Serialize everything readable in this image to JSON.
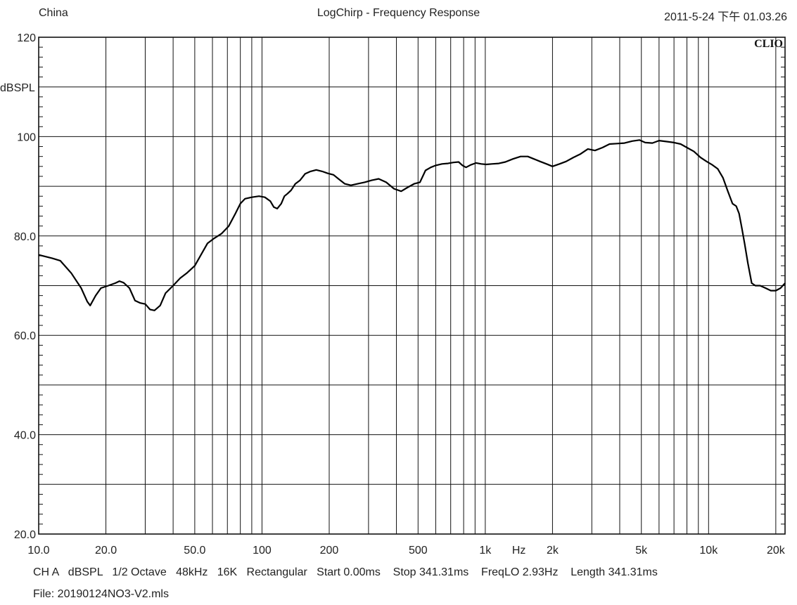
{
  "header": {
    "left": "China",
    "title": "LogChirp - Frequency Response",
    "datetime": "2011-5-24 下午 01.03.26"
  },
  "brand": "CLIO",
  "footer": {
    "params": "CH A   dBSPL   1/2 Octave   48kHz   16K   Rectangular   Start 0.00ms    Stop 341.31ms    FreqLO 2.93Hz    Length 341.31ms",
    "file": "File: 20190124NO3-V2.mls"
  },
  "chart_data": {
    "type": "line",
    "title": "LogChirp - Frequency Response",
    "xlabel": "Hz",
    "ylabel": "dBSPL",
    "xscale": "log",
    "xlim": [
      10,
      22000
    ],
    "ylim": [
      20,
      120
    ],
    "grid": true,
    "x_tick_labels": [
      {
        "value": 10,
        "label": "10.0"
      },
      {
        "value": 20,
        "label": "20.0"
      },
      {
        "value": 50,
        "label": "50.0"
      },
      {
        "value": 100,
        "label": "100"
      },
      {
        "value": 200,
        "label": "200"
      },
      {
        "value": 500,
        "label": "500"
      },
      {
        "value": 1000,
        "label": "1k"
      },
      {
        "value": 2000,
        "label": "2k"
      },
      {
        "value": 5000,
        "label": "5k"
      },
      {
        "value": 10000,
        "label": "10k"
      },
      {
        "value": 20000,
        "label": "20k"
      }
    ],
    "y_tick_labels": [
      {
        "value": 120,
        "label": "120"
      },
      {
        "value": 100,
        "label": "100"
      },
      {
        "value": 80,
        "label": "80.0"
      },
      {
        "value": 60,
        "label": "60.0"
      },
      {
        "value": 40,
        "label": "40.0"
      },
      {
        "value": 20,
        "label": "20.0"
      }
    ],
    "series": [
      {
        "x": [
          10,
          11.5,
          12.5,
          14,
          15.5,
          16.5,
          17,
          18,
          19,
          20.5,
          22,
          23,
          24,
          25.5,
          27,
          28.5,
          30,
          31.5,
          33,
          35,
          37,
          40,
          43,
          46,
          50,
          53,
          57,
          61,
          66,
          71,
          76,
          80,
          84,
          90,
          97,
          103,
          109,
          113,
          117,
          122,
          126,
          130,
          135,
          141,
          148,
          156,
          165,
          175,
          186,
          197,
          209,
          220,
          235,
          250,
          268,
          288,
          310,
          333,
          360,
          390,
          420,
          450,
          480,
          510,
          540,
          570,
          600,
          640,
          680,
          720,
          760,
          790,
          820,
          860,
          910,
          960,
          1010,
          1070,
          1150,
          1230,
          1330,
          1440,
          1550,
          1650,
          1760,
          1880,
          2000,
          2150,
          2300,
          2480,
          2670,
          2880,
          3100,
          3350,
          3600,
          3900,
          4200,
          4550,
          4900,
          5200,
          5600,
          6000,
          6500,
          7000,
          7500,
          8000,
          8600,
          9200,
          9800,
          10400,
          11000,
          11600,
          12200,
          12800,
          13300,
          13700,
          14100,
          14500,
          15000,
          15600,
          16200,
          17000,
          18000,
          19000,
          20000,
          21000,
          22000
        ],
        "y": [
          76.2,
          75.5,
          75.0,
          72.5,
          69.5,
          66.8,
          66.0,
          68.0,
          69.5,
          70.0,
          70.5,
          70.9,
          70.6,
          69.5,
          67.0,
          66.5,
          66.3,
          65.2,
          65.0,
          66.0,
          68.5,
          70.0,
          71.5,
          72.5,
          74.0,
          76.0,
          78.5,
          79.5,
          80.5,
          82.0,
          84.5,
          86.5,
          87.5,
          87.8,
          88.0,
          87.8,
          87.0,
          85.8,
          85.5,
          86.5,
          88.0,
          88.5,
          89.2,
          90.5,
          91.2,
          92.5,
          93.0,
          93.3,
          93.0,
          92.6,
          92.3,
          91.5,
          90.5,
          90.2,
          90.5,
          90.8,
          91.2,
          91.5,
          90.8,
          89.5,
          89.0,
          89.8,
          90.5,
          90.8,
          93.2,
          93.8,
          94.2,
          94.5,
          94.6,
          94.8,
          94.9,
          94.2,
          93.8,
          94.3,
          94.7,
          94.5,
          94.4,
          94.5,
          94.6,
          94.9,
          95.5,
          96.0,
          96.0,
          95.5,
          95.0,
          94.5,
          94.0,
          94.5,
          95.0,
          95.8,
          96.5,
          97.5,
          97.2,
          97.8,
          98.5,
          98.6,
          98.7,
          99.1,
          99.3,
          98.8,
          98.7,
          99.2,
          99.0,
          98.8,
          98.5,
          97.8,
          97.0,
          95.8,
          95.0,
          94.3,
          93.5,
          91.7,
          89.0,
          86.5,
          86.0,
          84.5,
          81.5,
          78.5,
          74.5,
          70.5,
          70.0,
          70.0,
          69.5,
          69.0,
          69.0,
          69.5,
          70.5
        ]
      }
    ]
  }
}
